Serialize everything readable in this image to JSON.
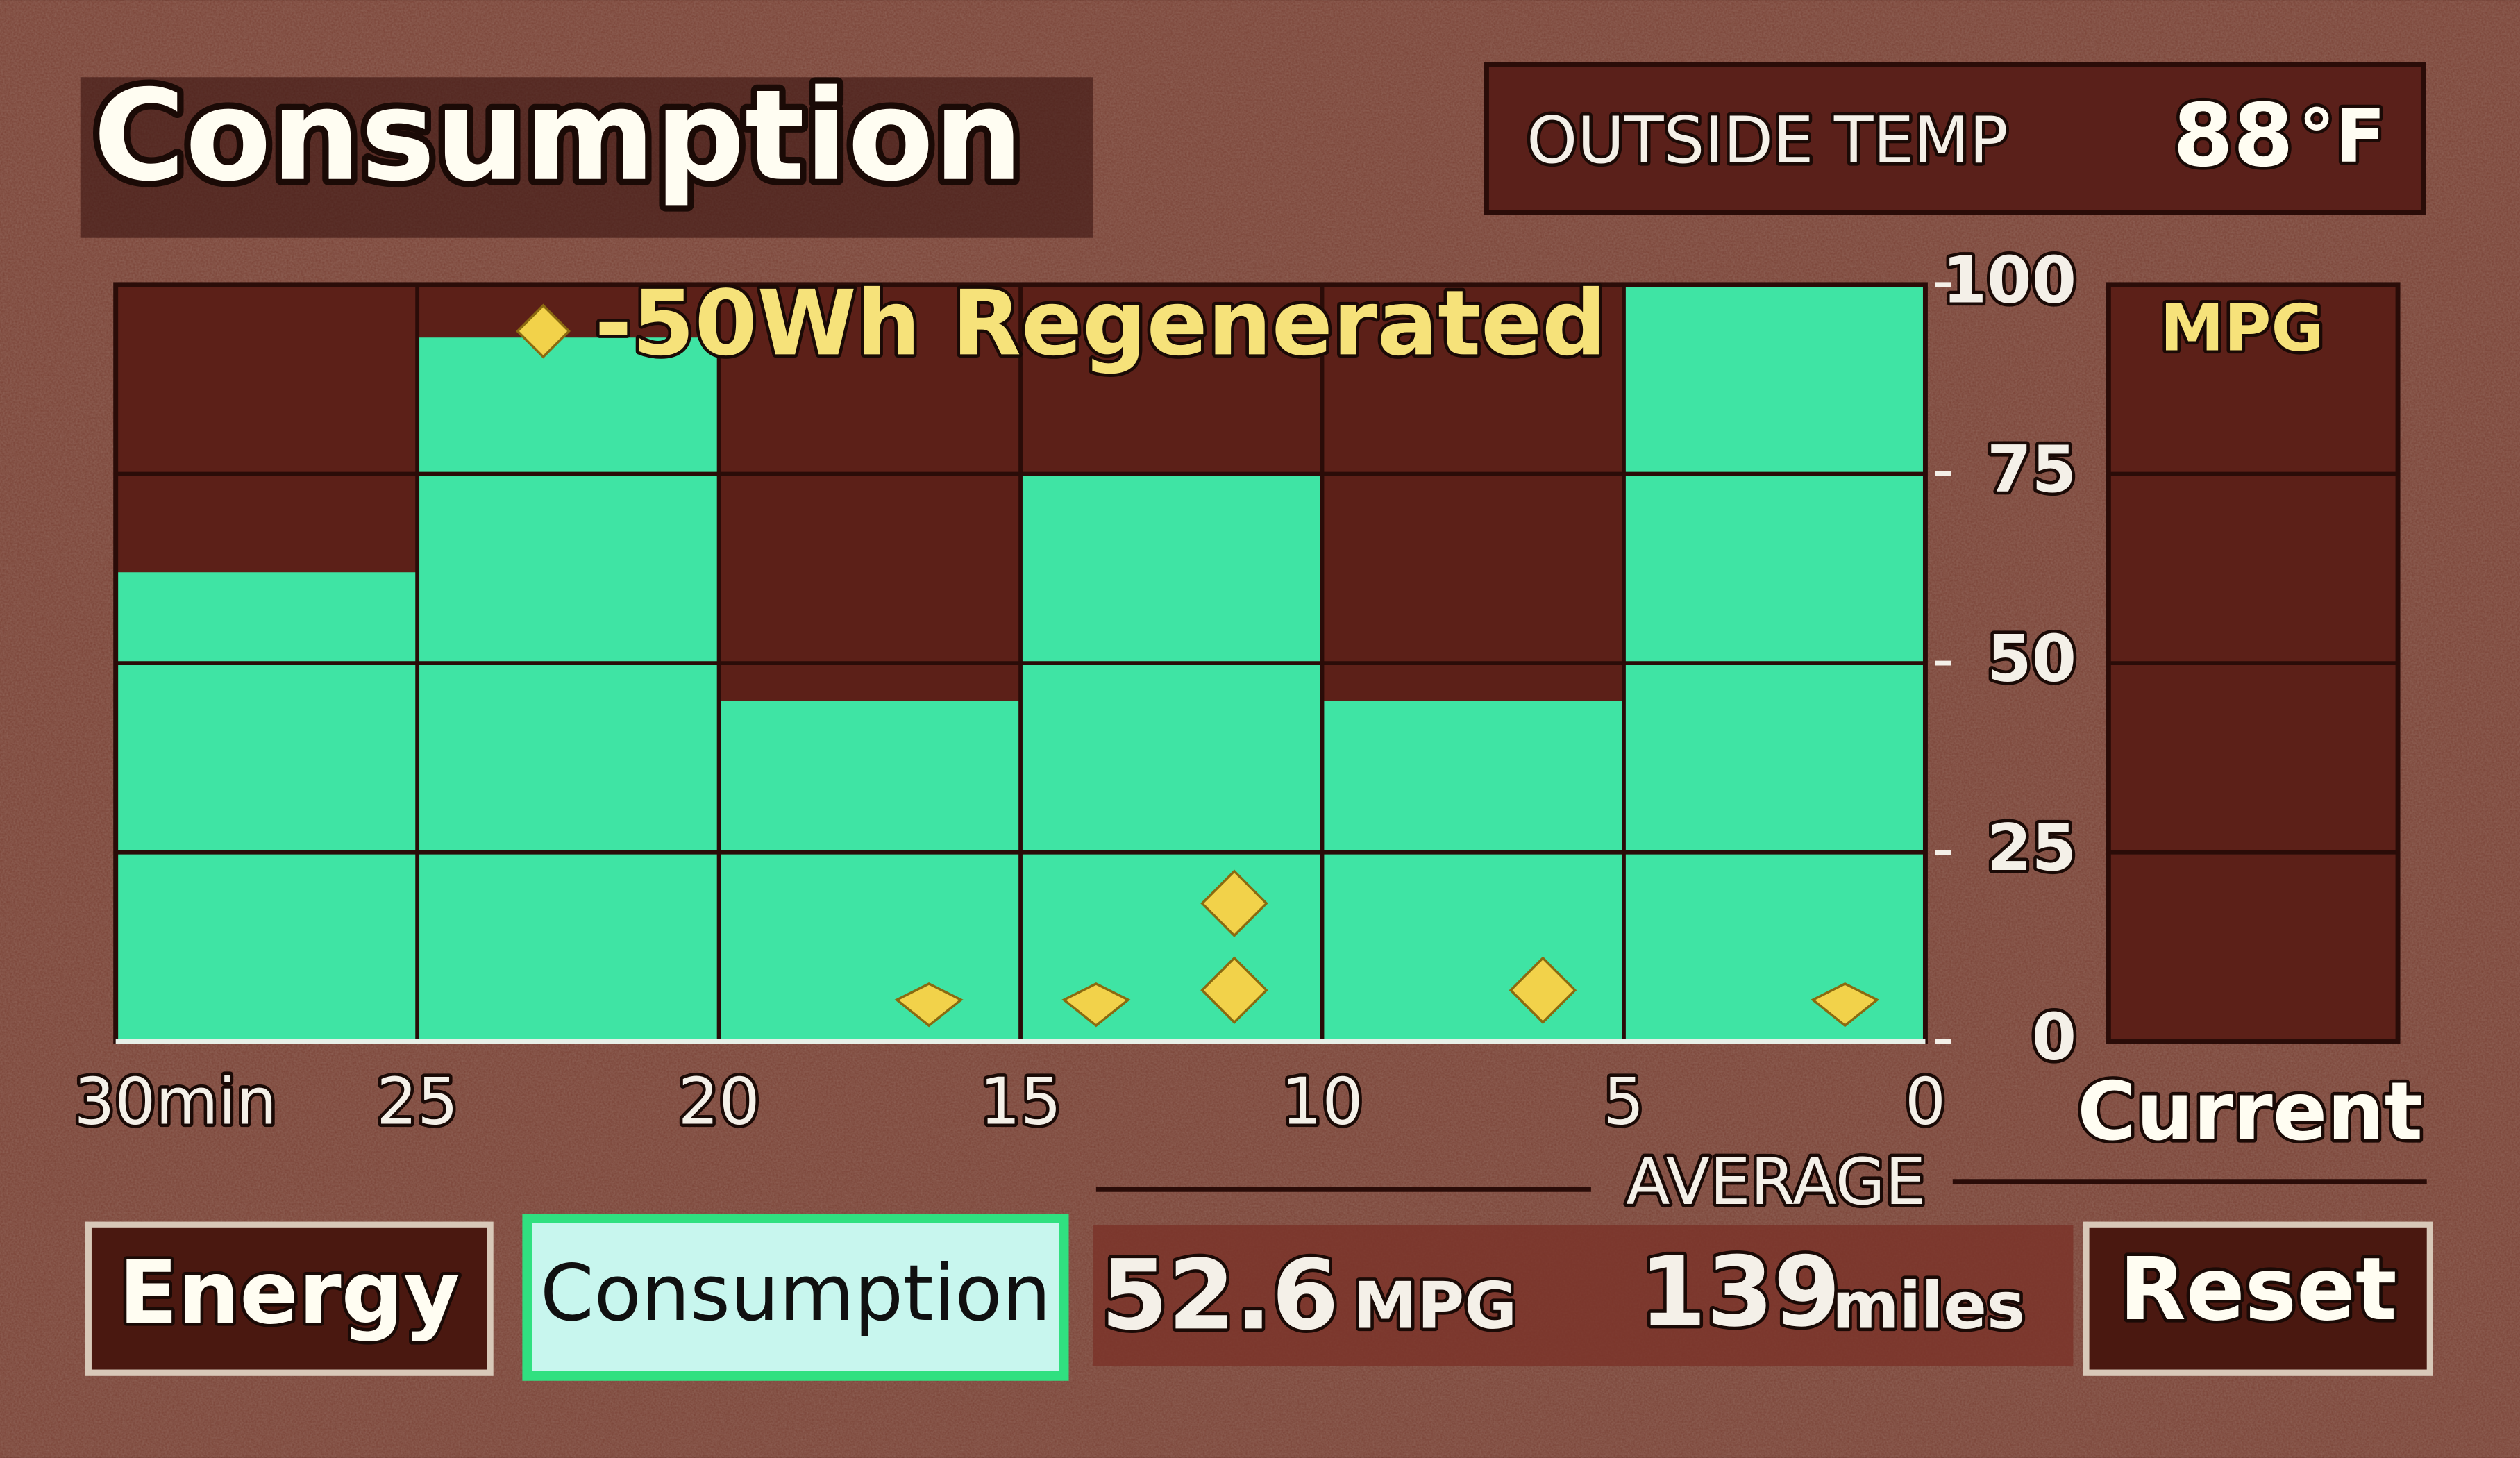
{
  "header": {
    "title": "Consumption"
  },
  "outside_temp": {
    "label": "OUTSIDE TEMP",
    "value": "88",
    "unit": "°F"
  },
  "chart_data": {
    "type": "histogram",
    "annotation": "-50Wh Regenerated",
    "bins": [
      30,
      25,
      20,
      15,
      10,
      5,
      0
    ],
    "values": [
      62,
      93,
      45,
      75,
      45,
      100
    ],
    "color": "#3fe4a4",
    "xlim": [
      30,
      0
    ],
    "xticks": [
      {
        "value": 30,
        "label": "30min"
      },
      25,
      20,
      15,
      10,
      5,
      0
    ],
    "ylim": [
      0,
      100
    ],
    "yticks": [
      0,
      25,
      50,
      75,
      100
    ],
    "grid": true
  },
  "current": {
    "label": "MPG",
    "caption": "Current"
  },
  "average": {
    "label": "AVERAGE",
    "mpg": "52.6",
    "mpg_unit": "MPG",
    "miles": "139",
    "miles_unit": "miles"
  },
  "buttons": {
    "energy": "Energy",
    "consumption": "Consumption",
    "reset": "Reset"
  }
}
